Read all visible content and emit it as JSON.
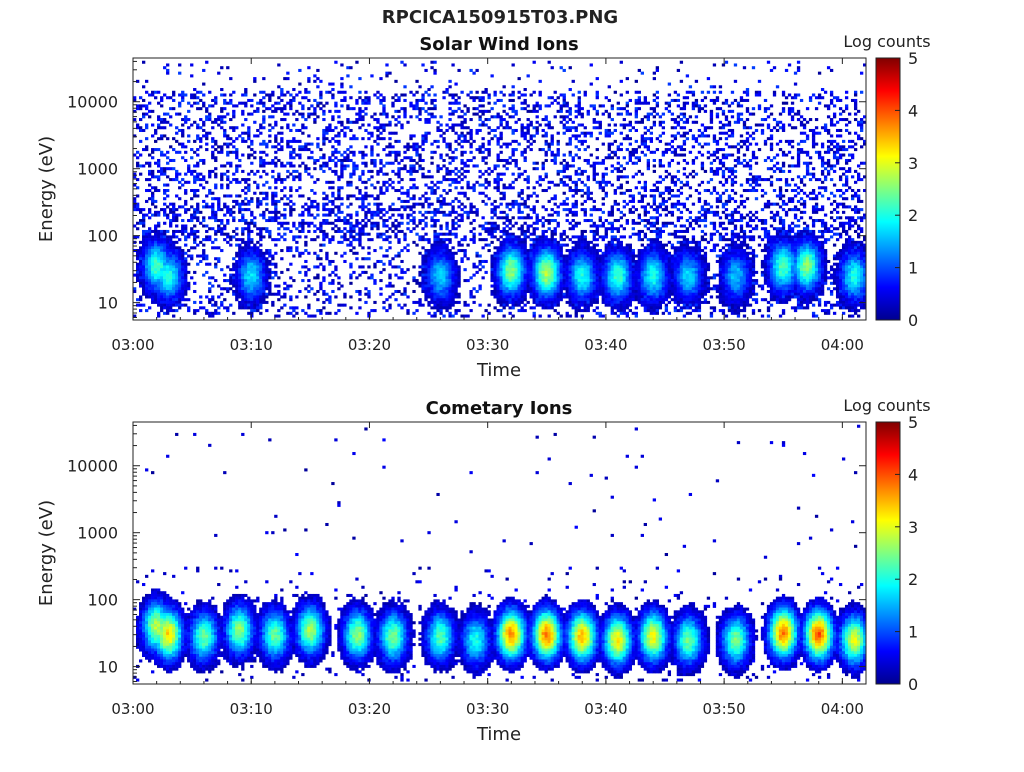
{
  "figure": {
    "title": "RPCICA150915T03.PNG"
  },
  "colorscale": {
    "label": "Log counts",
    "min": 0,
    "max": 5,
    "ticks": [
      "0",
      "1",
      "2",
      "3",
      "4",
      "5"
    ],
    "stops": [
      "#00008f",
      "#0000ff",
      "#0080ff",
      "#00ffff",
      "#80ff80",
      "#ffff00",
      "#ff8000",
      "#ff0000",
      "#800000"
    ]
  },
  "chart_data": [
    {
      "type": "heatmap",
      "title": "Solar Wind Ions",
      "xlabel": "Time",
      "ylabel": "Energy (eV)",
      "yscale": "log",
      "ylim": [
        5.5,
        45000
      ],
      "xlim": [
        "03:00",
        "04:02"
      ],
      "xticks": [
        "03:00",
        "03:10",
        "03:20",
        "03:30",
        "03:40",
        "03:50",
        "04:00"
      ],
      "yticks": [
        "10",
        "100",
        "1000",
        "10000"
      ],
      "background_noise": "sparse 0-1 log counts across 10-30000 eV",
      "bursts": [
        {
          "time": "03:02",
          "energy_ev": 35,
          "log_counts": 2.2
        },
        {
          "time": "03:03",
          "energy_ev": 25,
          "log_counts": 2.0
        },
        {
          "time": "03:10",
          "energy_ev": 25,
          "log_counts": 1.8
        },
        {
          "time": "03:26",
          "energy_ev": 25,
          "log_counts": 1.7
        },
        {
          "time": "03:32",
          "energy_ev": 30,
          "log_counts": 2.6
        },
        {
          "time": "03:35",
          "energy_ev": 28,
          "log_counts": 2.8
        },
        {
          "time": "03:38",
          "energy_ev": 25,
          "log_counts": 2.0
        },
        {
          "time": "03:41",
          "energy_ev": 25,
          "log_counts": 2.2
        },
        {
          "time": "03:44",
          "energy_ev": 25,
          "log_counts": 2.0
        },
        {
          "time": "03:47",
          "energy_ev": 25,
          "log_counts": 1.7
        },
        {
          "time": "03:51",
          "energy_ev": 25,
          "log_counts": 1.6
        },
        {
          "time": "03:55",
          "energy_ev": 35,
          "log_counts": 2.3
        },
        {
          "time": "03:57",
          "energy_ev": 35,
          "log_counts": 2.6
        },
        {
          "time": "04:01",
          "energy_ev": 25,
          "log_counts": 2.0
        }
      ]
    },
    {
      "type": "heatmap",
      "title": "Cometary Ions",
      "xlabel": "Time",
      "ylabel": "Energy (eV)",
      "yscale": "log",
      "ylim": [
        5.5,
        45000
      ],
      "xlim": [
        "03:00",
        "04:02"
      ],
      "xticks": [
        "03:00",
        "03:10",
        "03:20",
        "03:30",
        "03:40",
        "03:50",
        "04:00"
      ],
      "yticks": [
        "10",
        "100",
        "1000",
        "10000"
      ],
      "background_noise": "rare 0-1 log count points above 100 eV",
      "bursts": [
        {
          "time": "03:02",
          "energy_ev": 40,
          "log_counts": 2.8
        },
        {
          "time": "03:03",
          "energy_ev": 30,
          "log_counts": 3.3
        },
        {
          "time": "03:06",
          "energy_ev": 28,
          "log_counts": 2.4
        },
        {
          "time": "03:09",
          "energy_ev": 35,
          "log_counts": 2.6
        },
        {
          "time": "03:12",
          "energy_ev": 30,
          "log_counts": 2.4
        },
        {
          "time": "03:15",
          "energy_ev": 35,
          "log_counts": 2.7
        },
        {
          "time": "03:19",
          "energy_ev": 30,
          "log_counts": 2.6
        },
        {
          "time": "03:22",
          "energy_ev": 28,
          "log_counts": 2.5
        },
        {
          "time": "03:26",
          "energy_ev": 28,
          "log_counts": 2.3
        },
        {
          "time": "03:29",
          "energy_ev": 25,
          "log_counts": 2.0
        },
        {
          "time": "03:32",
          "energy_ev": 30,
          "log_counts": 3.7
        },
        {
          "time": "03:35",
          "energy_ev": 30,
          "log_counts": 3.8
        },
        {
          "time": "03:38",
          "energy_ev": 28,
          "log_counts": 3.5
        },
        {
          "time": "03:41",
          "energy_ev": 25,
          "log_counts": 3.2
        },
        {
          "time": "03:44",
          "energy_ev": 28,
          "log_counts": 3.1
        },
        {
          "time": "03:47",
          "energy_ev": 25,
          "log_counts": 2.4
        },
        {
          "time": "03:51",
          "energy_ev": 25,
          "log_counts": 2.5
        },
        {
          "time": "03:55",
          "energy_ev": 32,
          "log_counts": 3.8
        },
        {
          "time": "03:58",
          "energy_ev": 30,
          "log_counts": 4.0
        },
        {
          "time": "04:01",
          "energy_ev": 25,
          "log_counts": 3.0
        }
      ]
    }
  ]
}
